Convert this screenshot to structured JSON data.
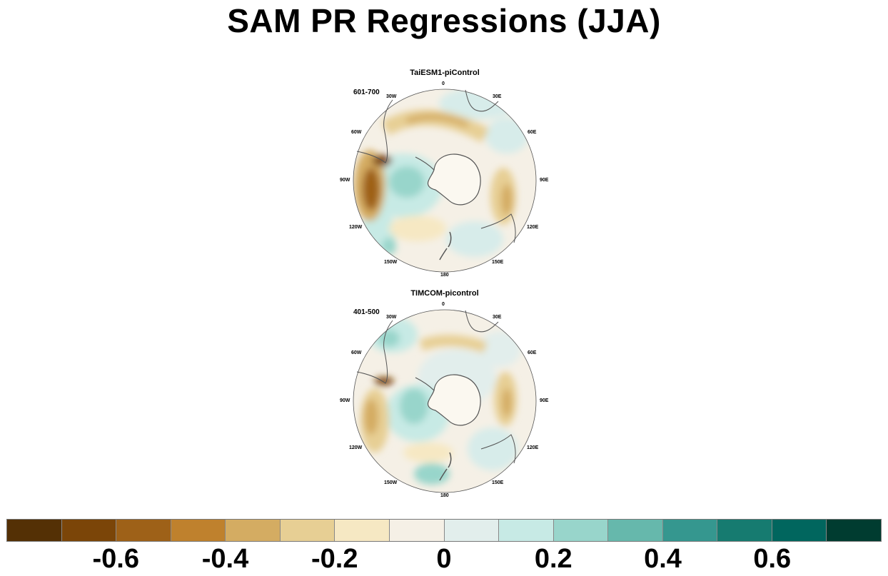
{
  "title": "SAM PR Regressions (JJA)",
  "panels": [
    {
      "title": "TaiESM1-piControl",
      "years": "601-700",
      "lon_labels": [
        "0",
        "30E",
        "60E",
        "90E",
        "120E",
        "150E",
        "180",
        "150W",
        "120W",
        "90W",
        "60W",
        "30W"
      ]
    },
    {
      "title": "TIMCOM-picontrol",
      "years": "401-500",
      "lon_labels": [
        "0",
        "30E",
        "60E",
        "90E",
        "120E",
        "150E",
        "180",
        "150W",
        "120W",
        "90W",
        "60W",
        "30W"
      ]
    }
  ],
  "colorbar": {
    "colors": [
      "#543005",
      "#7b4508",
      "#9e6118",
      "#bf812d",
      "#d4ac62",
      "#e7cf94",
      "#f6e8c3",
      "#f5f0e6",
      "#e2eeec",
      "#c7eae5",
      "#98d5cb",
      "#66b8ac",
      "#35978f",
      "#167b70",
      "#01665e",
      "#003c30"
    ],
    "tick_labels": [
      "-0.6",
      "-0.4",
      "-0.2",
      "0",
      "0.2",
      "0.4",
      "0.6"
    ],
    "tick_values": [
      -0.6,
      -0.4,
      -0.2,
      0,
      0.2,
      0.4,
      0.6
    ],
    "min": -0.8,
    "max": 0.8
  }
}
